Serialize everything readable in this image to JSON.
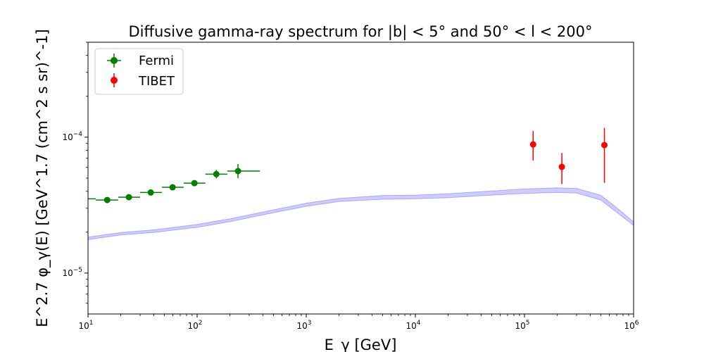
{
  "chart_data": {
    "type": "scatter",
    "title": "Diffusive gamma-ray spectrum for |b| < 5° and 50° < l < 200°",
    "xlabel": "E_γ [GeV]",
    "ylabel": "E^2.7 φ_γ(E) [GeV^1.7 (cm^2 s sr)^-1]",
    "xscale": "log",
    "yscale": "log",
    "xlim": [
      10,
      1000000
    ],
    "ylim": [
      5e-06,
      0.0005
    ],
    "x_ticks": [
      {
        "value": 10,
        "base": "10",
        "exp": "1"
      },
      {
        "value": 100,
        "base": "10",
        "exp": "2"
      },
      {
        "value": 1000,
        "base": "10",
        "exp": "3"
      },
      {
        "value": 10000,
        "base": "10",
        "exp": "4"
      },
      {
        "value": 100000,
        "base": "10",
        "exp": "5"
      },
      {
        "value": 1000000,
        "base": "10",
        "exp": "6"
      }
    ],
    "y_ticks": [
      {
        "value": 1e-05,
        "base": "10",
        "exp": "−5"
      },
      {
        "value": 0.0001,
        "base": "10",
        "exp": "−4"
      }
    ],
    "legend_position": "top-left",
    "series": [
      {
        "name": "Fermi",
        "color": "#008000",
        "points": [
          {
            "x": 15,
            "y": 3.45e-05,
            "xerr": [
              11.8,
              18.9
            ],
            "yerr": [
              3.35e-05,
              3.55e-05
            ]
          },
          {
            "x": 23.7,
            "y": 3.62e-05,
            "xerr": [
              18.9,
              30
            ],
            "yerr": [
              3.52e-05,
              3.72e-05
            ]
          },
          {
            "x": 37.6,
            "y": 3.92e-05,
            "xerr": [
              30,
              47.5
            ],
            "yerr": [
              3.82e-05,
              4.02e-05
            ]
          },
          {
            "x": 59.6,
            "y": 4.28e-05,
            "xerr": [
              47.5,
              75.2
            ],
            "yerr": [
              4.17e-05,
              4.39e-05
            ]
          },
          {
            "x": 94.5,
            "y": 4.59e-05,
            "xerr": [
              75.2,
              119
            ],
            "yerr": [
              4.45e-05,
              4.73e-05
            ]
          },
          {
            "x": 150,
            "y": 5.35e-05,
            "xerr": [
              119,
              189
            ],
            "yerr": [
              4.98e-05,
              5.75e-05
            ]
          },
          {
            "x": 237,
            "y": 5.63e-05,
            "xerr": [
              189,
              377
            ],
            "yerr": [
              5e-05,
              6.35e-05
            ]
          }
        ],
        "extra_segments": [
          {
            "x": 10,
            "y": 3.52e-05,
            "xerr": [
              10,
              11.8
            ]
          }
        ]
      },
      {
        "name": "TIBET",
        "color": "#ff0000",
        "points": [
          {
            "x": 120000,
            "y": 8.85e-05,
            "yerr": [
              6.75e-05,
              0.000111
            ]
          },
          {
            "x": 220000,
            "y": 6.05e-05,
            "yerr": [
              4.52e-05,
              7.65e-05
            ]
          },
          {
            "x": 540000,
            "y": 8.75e-05,
            "yerr": [
              4.62e-05,
              0.000117
            ]
          }
        ]
      }
    ],
    "band": {
      "color": "#0000ff",
      "opacity": 0.2,
      "x": [
        10,
        20,
        40,
        100,
        200,
        500,
        1000,
        2000,
        5000,
        10000,
        20000,
        50000,
        100000,
        200000,
        300000,
        500000,
        700000,
        1000000
      ],
      "y_low": [
        1.76e-05,
        1.91e-05,
        1.99e-05,
        2.17e-05,
        2.39e-05,
        2.78e-05,
        3.1e-05,
        3.36e-05,
        3.49e-05,
        3.52e-05,
        3.59e-05,
        3.74e-05,
        3.86e-05,
        3.92e-05,
        3.88e-05,
        3.45e-05,
        2.8e-05,
        2.24e-05
      ],
      "y_high": [
        1.84e-05,
        1.99e-05,
        2.08e-05,
        2.28e-05,
        2.51e-05,
        2.92e-05,
        3.27e-05,
        3.55e-05,
        3.72e-05,
        3.75e-05,
        3.84e-05,
        4.02e-05,
        4.16e-05,
        4.24e-05,
        4.2e-05,
        3.74e-05,
        3.03e-05,
        2.38e-05
      ]
    }
  }
}
